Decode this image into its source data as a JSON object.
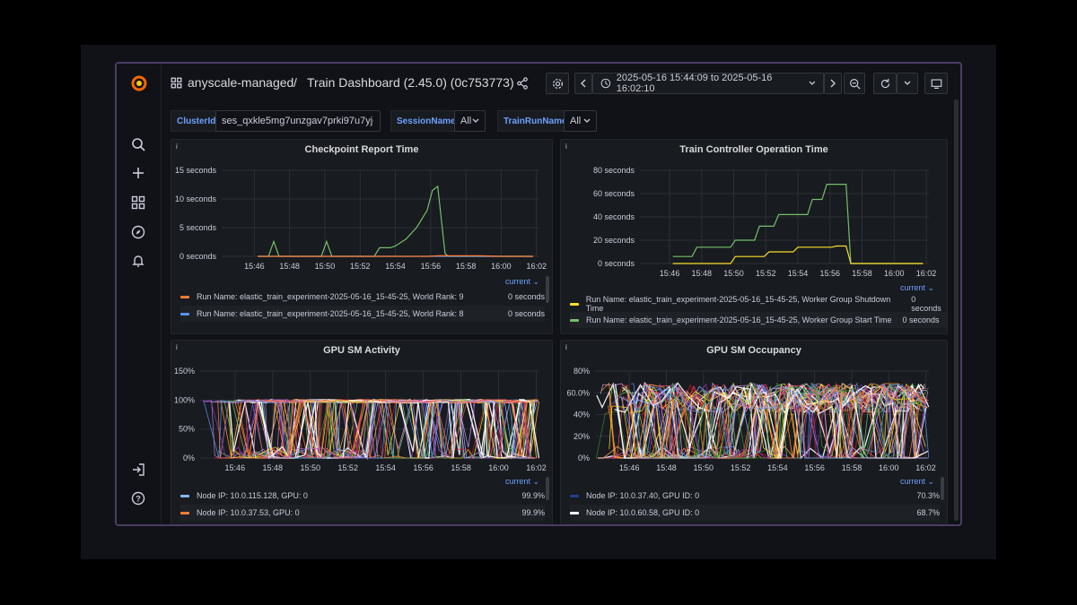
{
  "topbar": {
    "org": "anyscale-managed",
    "separator": "/",
    "dashboard_title": "Train Dashboard (2.45.0) (0c753773)",
    "time_range": "2025-05-16 15:44:09 to 2025-05-16 16:02:10"
  },
  "variables": [
    {
      "label": "ClusterId",
      "value": "ses_qxkle5mg7unzgav7prki97u7yj"
    },
    {
      "label": "SessionName",
      "value": "All"
    },
    {
      "label": "TrainRunName",
      "value": "All"
    }
  ],
  "icons": [
    "grafana-logo",
    "search-icon",
    "plus-icon",
    "dashboards-icon",
    "explore-icon",
    "bell-icon",
    "sign-in-icon",
    "help-icon",
    "share-icon",
    "gear-icon",
    "clock-icon",
    "zoom-out-icon",
    "refresh-icon",
    "tv-icon"
  ],
  "x_ticks": [
    "15:46",
    "15:48",
    "15:50",
    "15:52",
    "15:54",
    "15:56",
    "15:58",
    "16:00",
    "16:02"
  ],
  "legend_header": "current",
  "panels": {
    "checkpoint": {
      "title": "Checkpoint Report Time",
      "chart_data": {
        "type": "line",
        "x_range": [
          "15:44:09",
          "16:02:10"
        ],
        "y_ticks": [
          "0 seconds",
          "5 seconds",
          "10 seconds",
          "15 seconds"
        ],
        "ylim": [
          0,
          15
        ],
        "series": [
          {
            "name": "Run Name: elastic_train_experiment-2025-05-16_15-45-25, World Rank: 9",
            "color": "#ff7b36",
            "current": "0 seconds",
            "points": [
              [
                15.77,
                0
              ],
              [
                15.93,
                0
              ],
              [
                15.94,
                0.1
              ],
              [
                15.98,
                0.1
              ],
              [
                16.0,
                0
              ],
              [
                16.03,
                0
              ]
            ]
          },
          {
            "name": "Run Name: elastic_train_experiment-2025-05-16_15-45-25, World Rank: 8",
            "color": "#5794f2",
            "current": "0 seconds",
            "points": [
              [
                15.77,
                0
              ],
              [
                16.03,
                0
              ]
            ]
          },
          {
            "name": "",
            "color": "#73bf69",
            "current": "",
            "points": [
              [
                15.77,
                0
              ],
              [
                15.78,
                0
              ],
              [
                15.785,
                2.6
              ],
              [
                15.79,
                0
              ],
              [
                15.83,
                0
              ],
              [
                15.835,
                2.6
              ],
              [
                15.84,
                0
              ],
              [
                15.86,
                0
              ],
              [
                15.88,
                0
              ],
              [
                15.885,
                1.5
              ],
              [
                15.895,
                1.5
              ],
              [
                15.9,
                1.8
              ],
              [
                15.91,
                3
              ],
              [
                15.92,
                5
              ],
              [
                15.93,
                8
              ],
              [
                15.935,
                11.5
              ],
              [
                15.94,
                12.2
              ],
              [
                15.947,
                0.5
              ],
              [
                15.95,
                0
              ],
              [
                16.03,
                0
              ]
            ]
          }
        ]
      }
    },
    "controller": {
      "title": "Train Controller Operation Time",
      "chart_data": {
        "type": "line",
        "x_range": [
          "15:44:09",
          "16:02:10"
        ],
        "y_ticks": [
          "0 seconds",
          "20 seconds",
          "40 seconds",
          "60 seconds",
          "80 seconds"
        ],
        "ylim": [
          0,
          80
        ],
        "series": [
          {
            "name": "Run Name: elastic_train_experiment-2025-05-16_15-45-25, Worker Group Shutdown Time",
            "color": "#fade2a",
            "current": "0 seconds",
            "points": [
              [
                15.77,
                0
              ],
              [
                15.83,
                0
              ],
              [
                15.835,
                6
              ],
              [
                15.865,
                6
              ],
              [
                15.87,
                10
              ],
              [
                15.895,
                10
              ],
              [
                15.9,
                14
              ],
              [
                15.935,
                14
              ],
              [
                15.94,
                15
              ],
              [
                15.95,
                15
              ],
              [
                15.955,
                0
              ],
              [
                16.03,
                0
              ]
            ]
          },
          {
            "name": "Run Name: elastic_train_experiment-2025-05-16_15-45-25, Worker Group Start Time",
            "color": "#73bf69",
            "current": "0 seconds",
            "points": [
              [
                15.77,
                6
              ],
              [
                15.79,
                6
              ],
              [
                15.795,
                14
              ],
              [
                15.83,
                14
              ],
              [
                15.835,
                20
              ],
              [
                15.855,
                20
              ],
              [
                15.86,
                32
              ],
              [
                15.875,
                32
              ],
              [
                15.88,
                42
              ],
              [
                15.91,
                42
              ],
              [
                15.915,
                55
              ],
              [
                15.925,
                55
              ],
              [
                15.93,
                68
              ],
              [
                15.95,
                68
              ],
              [
                15.955,
                0
              ],
              [
                16.03,
                0
              ]
            ]
          }
        ]
      }
    },
    "sm_activity": {
      "title": "GPU SM Activity",
      "chart_data": {
        "type": "line",
        "x_range": [
          "15:44:09",
          "16:02:10"
        ],
        "y_ticks": [
          "0%",
          "50%",
          "100%",
          "150%"
        ],
        "ylim": [
          0,
          150
        ],
        "series": [
          {
            "name": "Node IP: 10.0.115.128, GPU: 0",
            "color": "#8ab8ff",
            "current": "99.9%"
          },
          {
            "name": "Node IP: 10.0.37.53, GPU: 0",
            "color": "#ff7b36",
            "current": "99.9%"
          }
        ]
      }
    },
    "sm_occupancy": {
      "title": "GPU SM Occupancy",
      "chart_data": {
        "type": "line",
        "x_range": [
          "15:44:09",
          "16:02:10"
        ],
        "y_ticks": [
          "0%",
          "20%",
          "40%",
          "60.0%",
          "80%"
        ],
        "ylim": [
          0,
          80
        ],
        "series": [
          {
            "name": "Node IP: 10.0.37.40, GPU ID: 0",
            "color": "#1f3f8c",
            "current": "70.3%"
          },
          {
            "name": "Node IP: 10.0.60.58, GPU ID: 0",
            "color": "#ffffff",
            "current": "68.7%"
          }
        ]
      }
    }
  }
}
